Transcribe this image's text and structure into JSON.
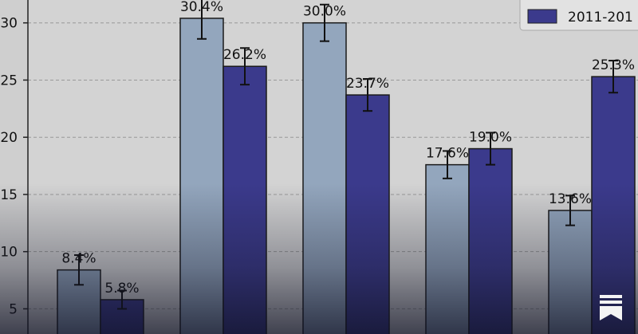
{
  "chart_data": {
    "type": "bar",
    "categories": [
      "",
      "",
      "",
      "",
      ""
    ],
    "series": [
      {
        "name": "",
        "color": "#93a6bd",
        "values": [
          8.4,
          30.4,
          30.0,
          17.6,
          13.6
        ],
        "errors": [
          1.3,
          1.8,
          1.6,
          1.2,
          1.3
        ],
        "labels": [
          "8.4%",
          "30.4%",
          "30.0%",
          "17.6%",
          "13.6%"
        ]
      },
      {
        "name": "2011-201",
        "color": "#3b3a8c",
        "values": [
          5.8,
          26.2,
          23.7,
          19.0,
          25.3
        ],
        "errors": [
          0.8,
          1.6,
          1.4,
          1.4,
          1.4
        ],
        "labels": [
          "5.8%",
          "26.2%",
          "23.7%",
          "19.0%",
          "25.3%"
        ]
      }
    ],
    "yticks": [
      "5",
      "10",
      "15",
      "20",
      "25",
      "30"
    ],
    "ylim": [
      2.8,
      32.0
    ],
    "grid": "y-dashed",
    "legend": "top-right",
    "title": "",
    "xlabel": "",
    "ylabel": ""
  },
  "icons": {
    "corner": "bookmark-icon"
  }
}
